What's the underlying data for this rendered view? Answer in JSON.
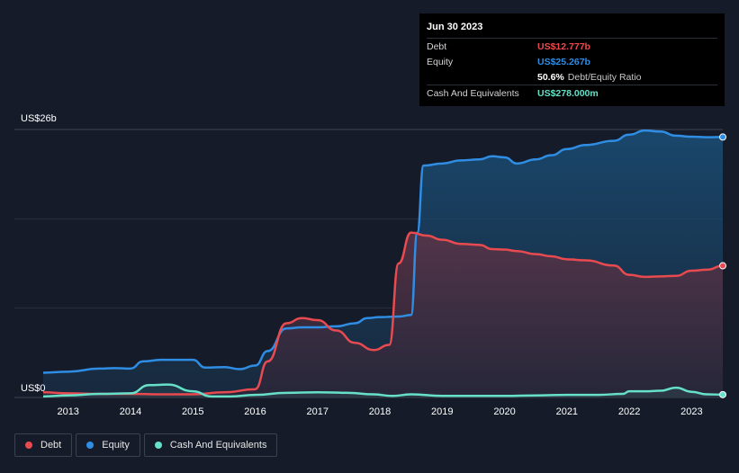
{
  "chart_data": {
    "type": "area",
    "title": "",
    "xlabel": "",
    "ylabel": "",
    "ylim": [
      0,
      26
    ],
    "y_unit": "US$b",
    "y_axis_labels": {
      "top": "US$26b",
      "bottom": "US$0"
    },
    "x_ticks": [
      "2013",
      "2014",
      "2015",
      "2016",
      "2017",
      "2018",
      "2019",
      "2020",
      "2021",
      "2022",
      "2023"
    ],
    "xlim": [
      2012.6,
      2023.5
    ],
    "series": [
      {
        "name": "Equity",
        "color": "#2f8de4",
        "x": [
          2012.6,
          2013.0,
          2013.5,
          2013.75,
          2014.0,
          2014.2,
          2014.5,
          2014.75,
          2015.0,
          2015.2,
          2015.5,
          2015.75,
          2016.0,
          2016.2,
          2016.5,
          2016.75,
          2017.0,
          2017.3,
          2017.6,
          2017.8,
          2018.0,
          2018.3,
          2018.5,
          2018.6,
          2018.7,
          2019.0,
          2019.3,
          2019.6,
          2019.8,
          2020.0,
          2020.2,
          2020.5,
          2020.75,
          2021.0,
          2021.3,
          2021.75,
          2022.0,
          2022.25,
          2022.5,
          2022.75,
          2023.0,
          2023.25,
          2023.5
        ],
        "values": [
          2.4,
          2.5,
          2.8,
          2.85,
          2.8,
          3.5,
          3.65,
          3.65,
          3.65,
          2.9,
          2.95,
          2.75,
          3.1,
          4.5,
          6.7,
          6.8,
          6.8,
          6.9,
          7.2,
          7.7,
          7.8,
          7.85,
          8.0,
          16.0,
          22.5,
          22.7,
          23.0,
          23.1,
          23.4,
          23.3,
          22.7,
          23.1,
          23.5,
          24.1,
          24.5,
          24.9,
          25.5,
          25.9,
          25.8,
          25.4,
          25.3,
          25.25,
          25.267
        ]
      },
      {
        "name": "Debt",
        "color": "#e84b4f",
        "x": [
          2012.6,
          2013.0,
          2013.5,
          2014.0,
          2014.5,
          2015.0,
          2015.5,
          2016.0,
          2016.2,
          2016.5,
          2016.75,
          2017.0,
          2017.3,
          2017.6,
          2017.9,
          2018.15,
          2018.3,
          2018.5,
          2018.75,
          2019.0,
          2019.3,
          2019.6,
          2019.8,
          2020.0,
          2020.2,
          2020.5,
          2020.75,
          2021.0,
          2021.3,
          2021.75,
          2022.0,
          2022.25,
          2022.5,
          2022.75,
          2023.0,
          2023.25,
          2023.5
        ],
        "values": [
          0.5,
          0.4,
          0.35,
          0.35,
          0.3,
          0.3,
          0.5,
          0.8,
          3.5,
          7.2,
          7.7,
          7.5,
          6.5,
          5.3,
          4.6,
          5.1,
          13.0,
          16.0,
          15.7,
          15.3,
          14.9,
          14.8,
          14.4,
          14.35,
          14.2,
          13.9,
          13.7,
          13.4,
          13.3,
          12.8,
          11.9,
          11.7,
          11.75,
          11.8,
          12.3,
          12.4,
          12.777
        ]
      },
      {
        "name": "Cash And Equivalents",
        "color": "#66e0c8",
        "x": [
          2012.6,
          2013.0,
          2013.5,
          2014.0,
          2014.3,
          2014.6,
          2015.0,
          2015.3,
          2015.6,
          2016.0,
          2016.5,
          2017.0,
          2017.5,
          2017.9,
          2018.2,
          2018.5,
          2019.0,
          2019.5,
          2020.0,
          2020.5,
          2021.0,
          2021.5,
          2021.9,
          2022.0,
          2022.25,
          2022.5,
          2022.75,
          2023.0,
          2023.25,
          2023.5
        ],
        "values": [
          0.1,
          0.2,
          0.35,
          0.4,
          1.2,
          1.25,
          0.6,
          0.1,
          0.1,
          0.25,
          0.45,
          0.5,
          0.45,
          0.3,
          0.15,
          0.3,
          0.15,
          0.15,
          0.15,
          0.2,
          0.25,
          0.25,
          0.35,
          0.6,
          0.6,
          0.65,
          0.95,
          0.55,
          0.3,
          0.278
        ]
      }
    ],
    "legend": [
      "Debt",
      "Equity",
      "Cash And Equivalents"
    ],
    "legend_position": "bottom-left",
    "grid": true
  },
  "tooltip": {
    "date": "Jun 30 2023",
    "rows": [
      {
        "label": "Debt",
        "value": "US$12.777b",
        "color": "#e84b4f"
      },
      {
        "label": "Equity",
        "value": "US$25.267b",
        "color": "#2f8de4"
      },
      {
        "label": "",
        "value": "50.6%",
        "extra": "Debt/Equity Ratio",
        "color": "#ffffff"
      },
      {
        "label": "Cash And Equivalents",
        "value": "US$278.000m",
        "color": "#66e0c8"
      }
    ]
  },
  "legend_items": [
    {
      "label": "Debt",
      "color": "#e84b4f"
    },
    {
      "label": "Equity",
      "color": "#2f8de4"
    },
    {
      "label": "Cash And Equivalents",
      "color": "#66e0c8"
    }
  ]
}
